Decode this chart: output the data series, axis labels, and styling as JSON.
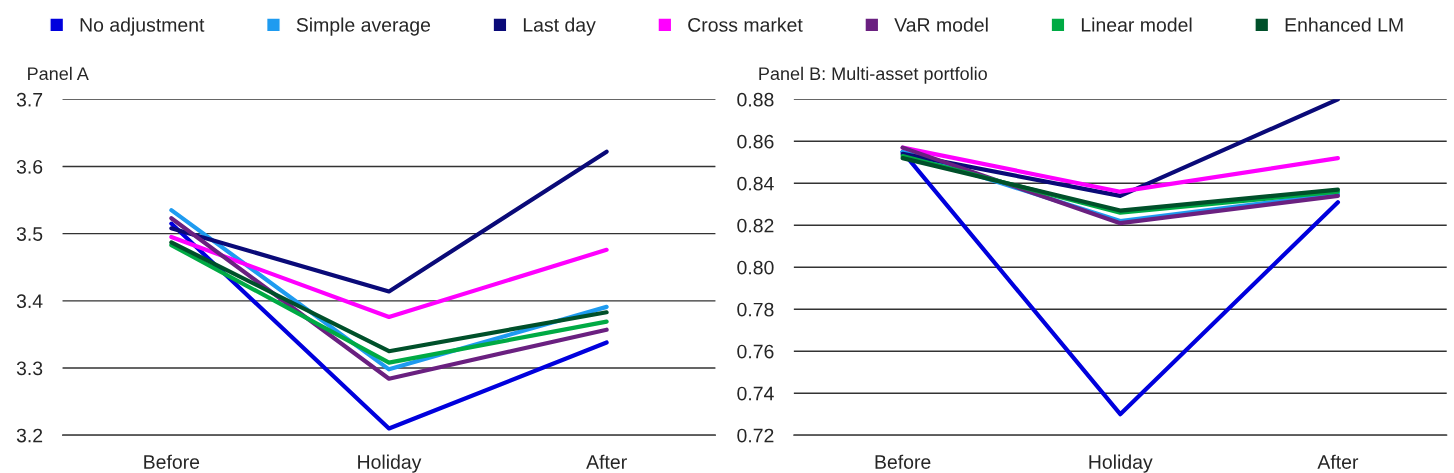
{
  "chart_data": [
    {
      "type": "line",
      "title": "Panel A",
      "categories": [
        "Before",
        "Holiday",
        "After"
      ],
      "ylim": [
        3.2,
        3.7
      ],
      "yticks": [
        3.2,
        3.3,
        3.4,
        3.5,
        3.6,
        3.7
      ],
      "grid": "y",
      "legend": "top",
      "line_style": "solid",
      "marker": "none",
      "series": [
        {
          "name": "No adjustment",
          "color": "#0000dd",
          "values": [
            3.515,
            3.21,
            3.338
          ]
        },
        {
          "name": "Simple average",
          "color": "#1e9bf0",
          "values": [
            3.535,
            3.298,
            3.391
          ]
        },
        {
          "name": "Last day",
          "color": "#0a0a78",
          "values": [
            3.508,
            3.414,
            3.622
          ]
        },
        {
          "name": "Cross market",
          "color": "#ff00ff",
          "values": [
            3.495,
            3.376,
            3.476
          ]
        },
        {
          "name": "VaR model",
          "color": "#6a2080",
          "values": [
            3.523,
            3.284,
            3.357
          ]
        },
        {
          "name": "Linear model",
          "color": "#00aa44",
          "values": [
            3.483,
            3.308,
            3.369
          ]
        },
        {
          "name": "Enhanced LM",
          "color": "#00502a",
          "values": [
            3.487,
            3.325,
            3.383
          ]
        }
      ]
    },
    {
      "type": "line",
      "title": "Panel B: Multi-asset portfolio",
      "categories": [
        "Before",
        "Holiday",
        "After"
      ],
      "ylim": [
        0.72,
        0.88
      ],
      "yticks": [
        {
          "value": 0.72,
          "label": "0.72"
        },
        {
          "value": 0.74,
          "label": "0.74"
        },
        {
          "value": 0.76,
          "label": "0.76"
        },
        {
          "value": 0.78,
          "label": "0.78"
        },
        {
          "value": 0.8,
          "label": "0.80"
        },
        {
          "value": 0.82,
          "label": "0.82"
        },
        {
          "value": 0.84,
          "label": "0.84"
        },
        {
          "value": 0.86,
          "label": "0.86"
        },
        {
          "value": 0.88,
          "label": "0.88"
        }
      ],
      "grid": "y",
      "line_style": "solid",
      "marker": "none",
      "series": [
        {
          "color": "#0000dd",
          "values": [
            0.855,
            0.73,
            0.831
          ]
        },
        {
          "color": "#1e9bf0",
          "values": [
            0.855,
            0.822,
            0.835
          ]
        },
        {
          "color": "#0a0a78",
          "values": [
            0.854,
            0.834,
            0.88
          ]
        },
        {
          "color": "#ff00ff",
          "values": [
            0.857,
            0.836,
            0.852
          ]
        },
        {
          "color": "#6a2080",
          "values": [
            0.857,
            0.821,
            0.834
          ]
        },
        {
          "color": "#00aa44",
          "values": [
            0.853,
            0.826,
            0.836
          ]
        },
        {
          "color": "#00502a",
          "values": [
            0.852,
            0.827,
            0.837
          ]
        }
      ]
    }
  ]
}
